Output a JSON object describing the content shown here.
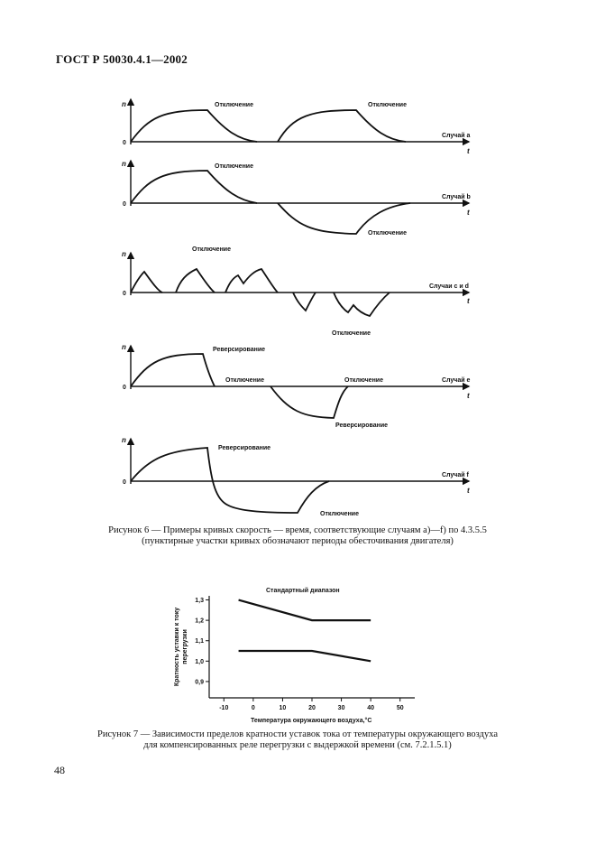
{
  "header": {
    "doc_code": "ГОСТ Р 50030.4.1—2002"
  },
  "figure6": {
    "axis_y": "n",
    "axis_x": "t",
    "zero": "0",
    "panels": [
      {
        "case_label": "Случай a",
        "labels": [
          "Отключение",
          "Отключение"
        ]
      },
      {
        "case_label": "Случай b",
        "labels": [
          "Отключение",
          "Отключение"
        ]
      },
      {
        "case_label": "Случаи c и d",
        "labels": [
          "Отключение",
          "Отключение"
        ]
      },
      {
        "case_label": "Случай e",
        "labels": [
          "Реверсирование",
          "Отключение",
          "Отключение",
          "Реверсирование"
        ]
      },
      {
        "case_label": "Случай f",
        "labels": [
          "Реверсирование",
          "Отключение"
        ]
      }
    ],
    "caption_line1": "Рисунок 6 — Примеры кривых скорость — время, соответствующие случаям a)—f) по 4.3.5.5",
    "caption_line2": "(пунктирные участки кривых обозначают периоды обесточивания двигателя)"
  },
  "figure7": {
    "chart_data": {
      "type": "line",
      "title": "Стандартный диапазон",
      "xlabel": "Температура окружающего воздуха,°С",
      "ylabel": "Кратность уставки к току перегрузки",
      "xlim": [
        -15,
        55
      ],
      "ylim": [
        0.82,
        1.32
      ],
      "x_ticks": [
        "-10",
        "0",
        "10",
        "20",
        "30",
        "40",
        "50"
      ],
      "y_ticks": [
        "0,9",
        "1,0",
        "1,1",
        "1,2",
        "1,3"
      ],
      "series": [
        {
          "x": [
            -5,
            20,
            40
          ],
          "y": [
            1.3,
            1.2,
            1.2
          ]
        },
        {
          "x": [
            -5,
            20,
            40
          ],
          "y": [
            1.05,
            1.05,
            1.0
          ]
        }
      ]
    },
    "caption_line1": "Рисунок 7 — Зависимости пределов кратности уставок тока от температуры окружающего воздуха",
    "caption_line2": "для компенсированных реле перегрузки с выдержкой времени (см. 7.2.1.5.1)"
  },
  "page_number": "48"
}
